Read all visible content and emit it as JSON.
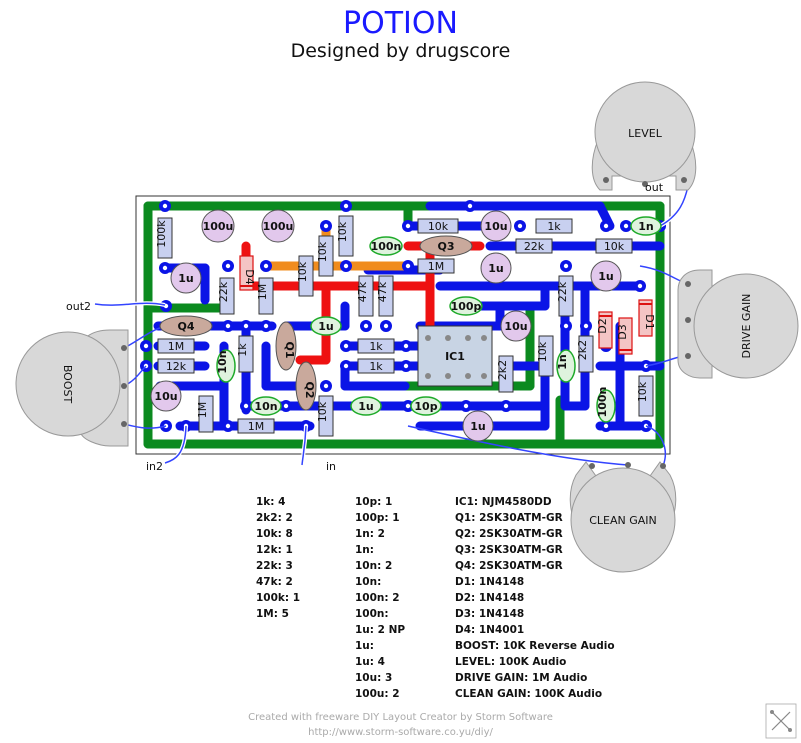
{
  "title": "POTION",
  "subtitle": "Designed by drugscore",
  "pots": {
    "level": "LEVEL",
    "boost": "BOOST",
    "drive_gain": "DRIVE GAIN",
    "clean_gain": "CLEAN GAIN"
  },
  "wire_labels": {
    "out": "out",
    "out2": "out2",
    "in2": "in2",
    "in": "in"
  },
  "components": {
    "r_100k": "100k",
    "r_10k": "10k",
    "r_1k": "1k",
    "r_22k": "22k",
    "r_1M": "1M",
    "r_12k": "12k",
    "r_47k": "47k",
    "r_2k2": "2k2",
    "c_100u": "100u",
    "c_10u": "10u",
    "c_1u": "1u",
    "c_100n": "100n",
    "c_10n": "10n",
    "c_100p": "100p",
    "c_10p": "10p",
    "c_1n": "1n",
    "q1": "Q1",
    "q2": "Q2",
    "q3": "Q3",
    "q4": "Q4",
    "d1": "D1",
    "d2": "D2",
    "d3": "D3",
    "d4": "D4",
    "ic1": "IC1"
  },
  "bom_col1": [
    "1k: 4",
    "2k2: 2",
    "10k: 8",
    "12k: 1",
    "22k: 3",
    "47k: 2",
    "100k: 1",
    "1M: 5"
  ],
  "bom_col2": [
    "10p: 1",
    "100p: 1",
    "1n: 2",
    "1n:",
    "10n: 2",
    "10n:",
    "100n: 2",
    "100n:",
    "1u: 2 NP",
    "1u:",
    "1u: 4",
    "10u: 3",
    "100u: 2"
  ],
  "bom_col3": [
    "IC1: NJM4580DD",
    "Q1: 2SK30ATM-GR",
    "Q2: 2SK30ATM-GR",
    "Q3: 2SK30ATM-GR",
    "Q4: 2SK30ATM-GR",
    "D1: 1N4148",
    "D2: 1N4148",
    "D3: 1N4148",
    "D4: 1N4001",
    "BOOST: 10K Reverse Audio",
    "LEVEL: 100K Audio",
    "DRIVE GAIN: 1M Audio",
    "CLEAN GAIN: 100K Audio"
  ],
  "credit_line1": "Created with freeware DIY Layout Creator by Storm Software",
  "credit_line2": "http://www.storm-software.co.yu/diy/",
  "colors": {
    "title": "#1a1aff",
    "ground_trace": "#0b8a1f",
    "signal_trace": "#0b14e6",
    "power_trace": "#ee1111",
    "bias_trace": "#f08c1e",
    "pot_body": "#d8d8d8",
    "resistor_fill": "#c8d0f0",
    "cap_electrolytic": "#e2c8ec",
    "cap_film": "#dff3de",
    "transistor": "#c9a99c",
    "diode": "#f4c4c4"
  }
}
